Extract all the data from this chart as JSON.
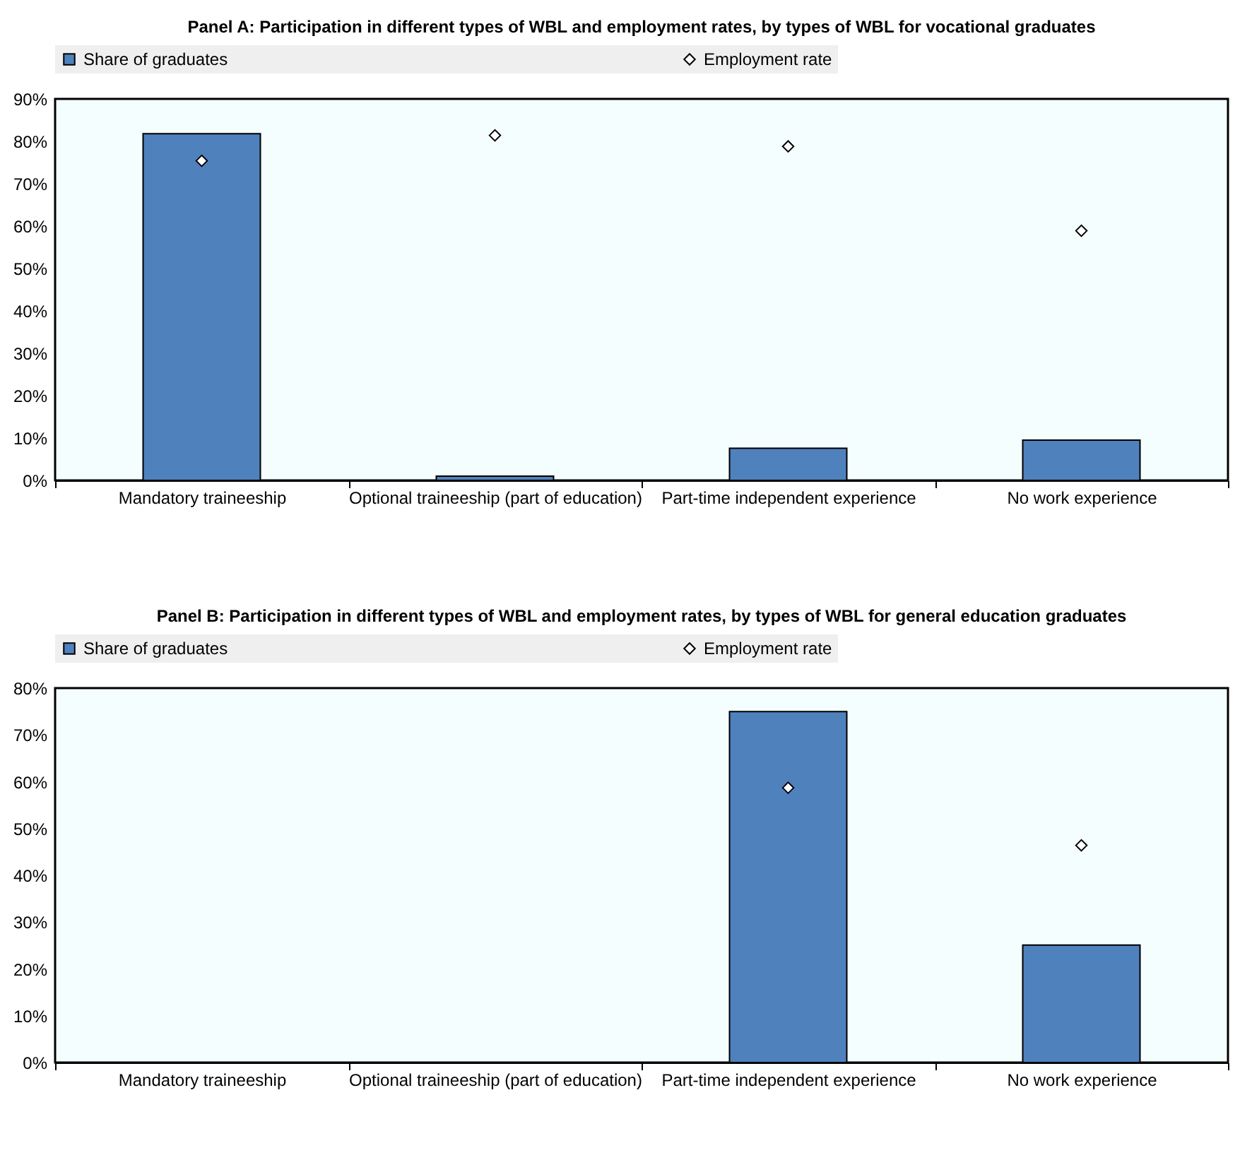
{
  "chart_data": [
    {
      "type": "bar",
      "title": "Panel A: Participation in different types of WBL and employment rates, by types of WBL for vocational graduates",
      "categories": [
        "Mandatory traineeship",
        "Optional traineeship (part of education)",
        "Part-time independent experience",
        "No work experience"
      ],
      "series": [
        {
          "name": "Share of graduates",
          "type": "bar",
          "color": "#4f81bd",
          "values": [
            81.8,
            1,
            7.6,
            9.5
          ]
        },
        {
          "name": "Employment rate",
          "type": "scatter",
          "color": "#ffffff",
          "values": [
            75.4,
            81.4,
            78.8,
            58.9
          ]
        }
      ],
      "ylim": [
        0,
        90
      ],
      "yticks": [
        {
          "value": 0,
          "label": "0%"
        },
        {
          "value": 10,
          "label": "10%"
        },
        {
          "value": 20,
          "label": "20%"
        },
        {
          "value": 30,
          "label": "30%"
        },
        {
          "value": 40,
          "label": "40%"
        },
        {
          "value": 50,
          "label": "50%"
        },
        {
          "value": 60,
          "label": "60%"
        },
        {
          "value": 70,
          "label": "70%"
        },
        {
          "value": 80,
          "label": "80%"
        },
        {
          "value": 90,
          "label": "90%"
        }
      ],
      "legend": "top",
      "marker": "diamond"
    },
    {
      "type": "bar",
      "title": "Panel B: Participation in different types of WBL and employment rates, by types of WBL for general education graduates",
      "categories": [
        "Mandatory traineeship",
        "Optional traineeship (part of education)",
        "Part-time independent experience",
        "No work experience"
      ],
      "series": [
        {
          "name": "Share of graduates",
          "type": "bar",
          "color": "#4f81bd",
          "values": [
            null,
            null,
            75.0,
            25.1
          ]
        },
        {
          "name": "Employment rate",
          "type": "scatter",
          "color": "#ffffff",
          "values": [
            null,
            null,
            58.7,
            46.4
          ]
        }
      ],
      "ylim": [
        0,
        80
      ],
      "yticks": [
        {
          "value": 0,
          "label": "0%"
        },
        {
          "value": 10,
          "label": "10%"
        },
        {
          "value": 20,
          "label": "20%"
        },
        {
          "value": 30,
          "label": "30%"
        },
        {
          "value": 40,
          "label": "40%"
        },
        {
          "value": 50,
          "label": "50%"
        },
        {
          "value": 60,
          "label": "60%"
        },
        {
          "value": 70,
          "label": "70%"
        },
        {
          "value": 80,
          "label": "80%"
        }
      ],
      "legend": "top",
      "marker": "diamond"
    }
  ]
}
